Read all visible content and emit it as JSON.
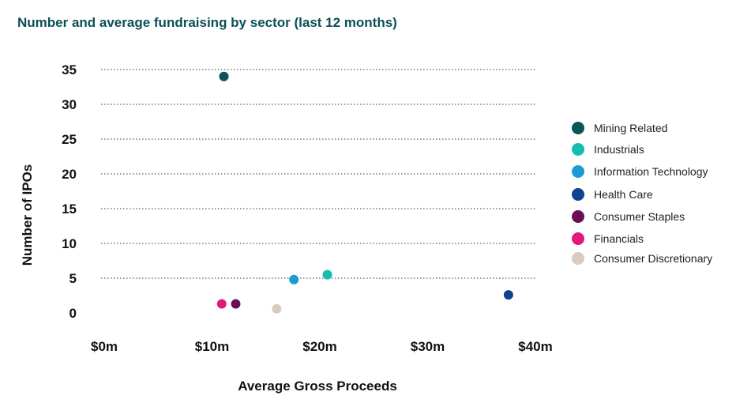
{
  "chart_data": {
    "type": "scatter",
    "title": "Number and average fundraising by sector (last 12 months)",
    "xlabel": "Average Gross Proceeds",
    "ylabel": "Number of IPOs",
    "xlim": [
      0,
      40
    ],
    "ylim": [
      0,
      35
    ],
    "x_ticks": [
      {
        "value": 0,
        "label": "$0m"
      },
      {
        "value": 10,
        "label": "$10m"
      },
      {
        "value": 20,
        "label": "$20m"
      },
      {
        "value": 30,
        "label": "$30m"
      },
      {
        "value": 40,
        "label": "$40m"
      }
    ],
    "y_ticks": [
      {
        "value": 0,
        "label": "0"
      },
      {
        "value": 5,
        "label": "5"
      },
      {
        "value": 10,
        "label": "10"
      },
      {
        "value": 15,
        "label": "15"
      },
      {
        "value": 20,
        "label": "20"
      },
      {
        "value": 25,
        "label": "25"
      },
      {
        "value": 30,
        "label": "30"
      },
      {
        "value": 35,
        "label": "35"
      }
    ],
    "grid": "horizontal-dotted",
    "legend_position": "right",
    "series": [
      {
        "name": "Mining Related",
        "color": "#0b5457",
        "x": 11.1,
        "y": 34
      },
      {
        "name": "Industrials",
        "color": "#14bdb0",
        "x": 20.7,
        "y": 5.5
      },
      {
        "name": "Information Technology",
        "color": "#1e9ad6",
        "x": 17.6,
        "y": 4.8
      },
      {
        "name": "Health Care",
        "color": "#0f4391",
        "x": 37.5,
        "y": 2.6
      },
      {
        "name": "Consumer Staples",
        "color": "#6b0f55",
        "x": 12.2,
        "y": 1.3
      },
      {
        "name": "Financials",
        "color": "#e01a7a",
        "x": 10.9,
        "y": 1.3
      },
      {
        "name": "Consumer Discretionary",
        "color": "#d9cbbf",
        "x": 16.0,
        "y": 0.6
      }
    ]
  }
}
